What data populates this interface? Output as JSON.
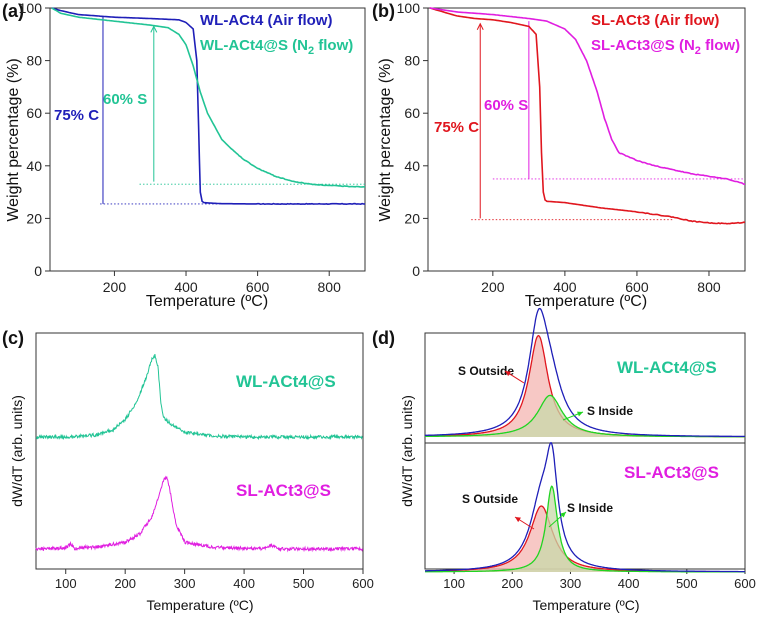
{
  "chart_data": [
    {
      "panel": "(a)",
      "type": "line",
      "xlabel": "Temperature (ºC)",
      "ylabel": "Weight percentage (%)",
      "xlim": [
        20,
        900
      ],
      "ylim": [
        0,
        100
      ],
      "xticks": [
        "200",
        "400",
        "600",
        "800"
      ],
      "yticks": [
        "0",
        "20",
        "40",
        "60",
        "80",
        "100"
      ],
      "series": [
        {
          "name": "WL-ACt4 (Air flow)",
          "color": "#1f1fb8",
          "x": [
            25,
            50,
            100,
            200,
            300,
            380,
            400,
            420,
            430,
            435,
            440,
            445,
            450,
            470,
            500,
            600,
            700,
            800,
            900
          ],
          "y": [
            100,
            99,
            97.5,
            96.5,
            96,
            95.5,
            94.5,
            92,
            80,
            55,
            30,
            26.5,
            26,
            25.8,
            25.6,
            25.5,
            25.5,
            25.5,
            25.5
          ]
        },
        {
          "name_prefix": "WL-ACt4@S (N",
          "name_sub": "2",
          "name_suffix": " flow)",
          "color": "#22c495",
          "x": [
            25,
            50,
            100,
            200,
            300,
            350,
            380,
            400,
            420,
            440,
            460,
            480,
            500,
            530,
            560,
            600,
            650,
            700,
            750,
            800,
            850,
            900
          ],
          "y": [
            100,
            98,
            96.5,
            95,
            93.5,
            92.5,
            90,
            86,
            78,
            68,
            60,
            55,
            50,
            46,
            42.5,
            39,
            36,
            34,
            33,
            32.5,
            32.2,
            32
          ]
        }
      ],
      "annotations": [
        {
          "text": "75% C",
          "color": "#1f1fb8"
        },
        {
          "text": "60% S",
          "color": "#22c495"
        }
      ]
    },
    {
      "panel": "(b)",
      "type": "line",
      "xlabel": "Temperature (ºC)",
      "ylabel": "Weight percentage (%)",
      "xlim": [
        20,
        900
      ],
      "ylim": [
        0,
        100
      ],
      "xticks": [
        "200",
        "400",
        "600",
        "800"
      ],
      "yticks": [
        "0",
        "20",
        "40",
        "60",
        "80",
        "100"
      ],
      "series": [
        {
          "name": "SL-ACt3 (Air flow)",
          "color": "#e0161e",
          "x": [
            25,
            50,
            100,
            150,
            200,
            250,
            300,
            320,
            330,
            335,
            340,
            345,
            350,
            400,
            500,
            600,
            700,
            750,
            800,
            850,
            900
          ],
          "y": [
            100,
            99,
            97,
            96,
            95.5,
            94.5,
            93,
            90,
            70,
            45,
            30,
            27,
            26.5,
            26,
            24,
            22.5,
            20.5,
            19,
            18.3,
            18,
            18.5
          ]
        },
        {
          "name_prefix": "SL-ACt3@S (N",
          "name_sub": "2",
          "name_suffix": " flow)",
          "color": "#e01ee0",
          "x": [
            25,
            50,
            100,
            200,
            300,
            350,
            400,
            430,
            460,
            490,
            510,
            530,
            550,
            600,
            650,
            700,
            750,
            800,
            850,
            900
          ],
          "y": [
            100,
            99.5,
            98.5,
            97.5,
            96,
            95,
            92,
            88,
            80,
            68,
            58,
            50,
            45,
            42,
            40,
            38.5,
            37,
            36,
            35,
            33
          ]
        }
      ],
      "annotations": [
        {
          "text": "75% C",
          "color": "#e0161e"
        },
        {
          "text": "60% S",
          "color": "#e01ee0"
        }
      ]
    },
    {
      "panel": "(c)",
      "type": "line",
      "xlabel": "Temperature (ºC)",
      "ylabel": "dW/dT (arb. units)",
      "xlim": [
        50,
        600
      ],
      "xticks": [
        "100",
        "200",
        "300",
        "400",
        "500",
        "600"
      ],
      "series": [
        {
          "name": "WL-ACt4@S",
          "color": "#22c495",
          "x": [
            50,
            100,
            150,
            180,
            200,
            220,
            235,
            245,
            250,
            255,
            260,
            265,
            280,
            300,
            350,
            400,
            500,
            600
          ],
          "y": [
            0.0,
            0.0,
            0.02,
            0.08,
            0.18,
            0.38,
            0.62,
            0.82,
            0.86,
            0.75,
            0.35,
            0.2,
            0.12,
            0.05,
            0.01,
            0.0,
            0.0,
            0.0
          ]
        },
        {
          "name": "SL-ACt3@S",
          "color": "#e01ee0",
          "x": [
            50,
            100,
            108,
            115,
            125,
            150,
            200,
            225,
            245,
            258,
            265,
            270,
            275,
            285,
            300,
            350,
            430,
            445,
            460,
            500,
            600
          ],
          "y": [
            0.0,
            0.01,
            0.06,
            0.0,
            0.02,
            0.02,
            0.08,
            0.18,
            0.38,
            0.65,
            0.82,
            0.84,
            0.7,
            0.3,
            0.08,
            0.02,
            0.0,
            0.05,
            0.0,
            0.0,
            0.0
          ]
        }
      ]
    },
    {
      "panel": "(d)",
      "type": "area",
      "xlabel": "Temperature (ºC)",
      "ylabel": "dW/dT (arb. units)",
      "xlim": [
        50,
        600
      ],
      "xticks": [
        "100",
        "200",
        "300",
        "400",
        "500",
        "600"
      ],
      "subplots": [
        {
          "sample": "WL-ACt4@S",
          "label_color": "#22c495",
          "peaks": [
            {
              "name": "S Outside",
              "center": 245,
              "width": 20,
              "height": 0.78,
              "color": "#e0161e",
              "fill": "#f4b6b2"
            },
            {
              "name": "S Inside",
              "center": 265,
              "width": 26,
              "height": 0.32,
              "color": "#21d421",
              "fill": "#c8d9a8"
            }
          ],
          "envelope_color": "#1f1fb8"
        },
        {
          "sample": "SL-ACt3@S",
          "label_color": "#e01ee0",
          "peaks": [
            {
              "name": "S Outside",
              "center": 250,
              "width": 24,
              "height": 0.6,
              "color": "#e0161e",
              "fill": "#f4b6b2"
            },
            {
              "name": "S Inside",
              "center": 268,
              "width": 12,
              "height": 0.78,
              "color": "#21d421",
              "fill": "#c8d9a8"
            }
          ],
          "envelope_color": "#1f1fb8"
        }
      ]
    }
  ]
}
